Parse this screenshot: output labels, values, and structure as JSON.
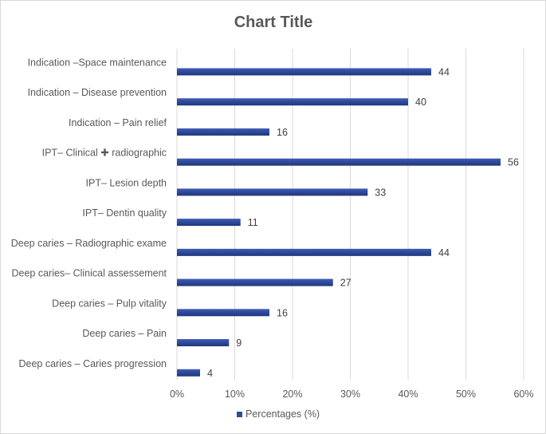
{
  "chart_data": {
    "type": "bar",
    "orientation": "horizontal",
    "title": "Chart Title",
    "categories": [
      "Indication –Space maintenance",
      "Indication – Disease prevention",
      "Indication – Pain relief",
      "IPT– Clinical ✚ radiographic",
      "IPT– Lesion depth",
      "IPT– Dentin quality",
      "Deep caries – Radiographic exame",
      "Deep caries– Clinical assessement",
      "Deep caries – Pulp vitality",
      "Deep caries – Pain",
      "Deep caries – Caries progression"
    ],
    "series": [
      {
        "name": "Percentages (%)",
        "color": "#2f4b9c",
        "values": [
          44,
          40,
          16,
          56,
          33,
          11,
          44,
          27,
          16,
          9,
          4
        ],
        "data_labels": [
          "44",
          "40",
          "16",
          "56",
          "33",
          "11",
          "44",
          "27",
          "16",
          "9",
          "4"
        ]
      }
    ],
    "xlim": [
      0,
      60
    ],
    "x_ticks": [
      "0%",
      "10%",
      "20%",
      "30%",
      "40%",
      "50%",
      "60%"
    ],
    "x_tick_values": [
      0,
      10,
      20,
      30,
      40,
      50,
      60
    ],
    "grid": true,
    "legend_position": "bottom"
  }
}
